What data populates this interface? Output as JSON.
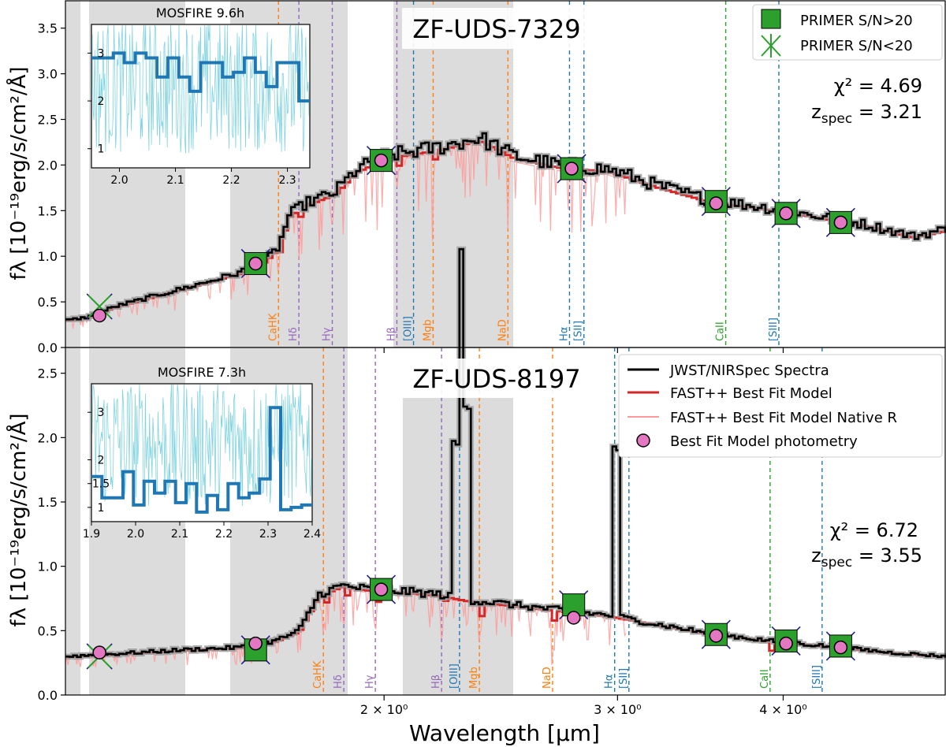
{
  "figure": {
    "xlabel": "Wavelength [µm]",
    "ylabel_top": "fλ [10⁻¹⁹erg/s/cm²/Å]",
    "ylabel_bottom": "fλ [10⁻¹⁹erg/s/cm²/Å]",
    "xticks": [
      "2 × 10⁰",
      "3 × 10⁰",
      "4 × 10⁰"
    ],
    "colors": {
      "spectrum": "#000000",
      "model": "#d62728",
      "model_native": "#ff9a9a",
      "photometry_fill": "#e377c2",
      "primer_fill": "#2ca02c",
      "shade": "#dcdcdc",
      "inset_raw": "#7fd3e0",
      "inset_binned": "#1f77b4",
      "balmer": "#9467bd",
      "abs": "#ff7f0e",
      "forbidden": "#1f77b4",
      "caii": "#2ca02c"
    }
  },
  "chart_data": [
    {
      "type": "line",
      "title": "ZF-UDS-7329",
      "xscale": "log",
      "xlim": [
        1.15,
        5.3
      ],
      "ylim": [
        0,
        3.8
      ],
      "yticks": [
        "0.0",
        "0.5",
        "1.0",
        "1.5",
        "2.0",
        "2.5",
        "3.0",
        "3.5"
      ],
      "chi2": "χ² = 4.69",
      "zspec": "z_spec = 3.21",
      "legend": [
        "PRIMER S/N>20",
        "PRIMER S/N<20"
      ],
      "lines": [
        {
          "label": "CaHK",
          "x": 1.665,
          "color": "abs"
        },
        {
          "label": "Hδ",
          "x": 1.725,
          "color": "balmer"
        },
        {
          "label": "Hγ",
          "x": 1.828,
          "color": "balmer"
        },
        {
          "label": "Hβ",
          "x": 2.045,
          "color": "balmer"
        },
        {
          "label": "[OIII]",
          "x": 2.105,
          "color": "forbidden"
        },
        {
          "label": "Mgb",
          "x": 2.178,
          "color": "abs"
        },
        {
          "label": "NaD",
          "x": 2.48,
          "color": "abs"
        },
        {
          "label": "Hα",
          "x": 2.76,
          "color": "forbidden"
        },
        {
          "label": "[SII]",
          "x": 2.83,
          "color": "forbidden"
        },
        {
          "label": "CaII",
          "x": 3.62,
          "color": "caii"
        },
        {
          "label": "[SIII]",
          "x": 3.97,
          "color": "forbidden"
        }
      ],
      "primer": [
        {
          "x": 1.22,
          "y": 0.45,
          "sn": "low"
        },
        {
          "x": 1.6,
          "y": 0.92,
          "sn": "high"
        },
        {
          "x": 1.99,
          "y": 2.05,
          "sn": "high"
        },
        {
          "x": 2.77,
          "y": 1.96,
          "sn": "high"
        },
        {
          "x": 3.56,
          "y": 1.6,
          "sn": "high"
        },
        {
          "x": 4.02,
          "y": 1.47,
          "sn": "high"
        },
        {
          "x": 4.42,
          "y": 1.37,
          "sn": "high"
        }
      ],
      "model_phot": [
        {
          "x": 1.22,
          "y": 0.35
        },
        {
          "x": 1.6,
          "y": 0.92
        },
        {
          "x": 1.99,
          "y": 2.05
        },
        {
          "x": 2.77,
          "y": 1.96
        },
        {
          "x": 3.56,
          "y": 1.58
        },
        {
          "x": 4.02,
          "y": 1.47
        },
        {
          "x": 4.42,
          "y": 1.37
        }
      ],
      "spectrum_nodes": [
        [
          1.15,
          0.3
        ],
        [
          1.19,
          0.33
        ],
        [
          1.25,
          0.45
        ],
        [
          1.35,
          0.58
        ],
        [
          1.45,
          0.7
        ],
        [
          1.55,
          0.82
        ],
        [
          1.62,
          0.95
        ],
        [
          1.66,
          1.1
        ],
        [
          1.69,
          1.45
        ],
        [
          1.74,
          1.58
        ],
        [
          1.83,
          1.7
        ],
        [
          1.9,
          1.95
        ],
        [
          2.0,
          2.1
        ],
        [
          2.1,
          2.15
        ],
        [
          2.2,
          2.2
        ],
        [
          2.35,
          2.3
        ],
        [
          2.5,
          2.1
        ],
        [
          2.7,
          2.0
        ],
        [
          2.95,
          1.95
        ],
        [
          3.2,
          1.78
        ],
        [
          3.5,
          1.62
        ],
        [
          3.8,
          1.55
        ],
        [
          4.2,
          1.45
        ],
        [
          4.6,
          1.35
        ],
        [
          5.0,
          1.22
        ],
        [
          5.3,
          1.3
        ]
      ],
      "inset": {
        "title": "MOSFIRE 9.6h",
        "xlim": [
          1.95,
          2.34
        ],
        "ylim": [
          0.6,
          3.6
        ],
        "xticks": [
          "2.0",
          "2.1",
          "2.2",
          "2.3"
        ],
        "yticks": [
          "1",
          "2",
          "3"
        ],
        "binned": [
          2.9,
          2.9,
          3.0,
          2.8,
          3.0,
          2.9,
          2.5,
          2.9,
          2.5,
          2.2,
          2.8,
          2.8,
          2.5,
          2.6,
          2.9,
          2.6,
          2.3,
          2.8,
          2.8,
          2.0
        ]
      }
    },
    {
      "type": "line",
      "title": "ZF-UDS-8197",
      "xscale": "log",
      "xlim": [
        1.15,
        5.3
      ],
      "ylim": [
        0,
        2.7
      ],
      "yticks": [
        "0.0",
        "0.5",
        "1.0",
        "1.5",
        "2.0",
        "2.5"
      ],
      "chi2": "χ² = 6.72",
      "zspec": "z_spec = 3.55",
      "legend": [
        "JWST/NIRSpec Spectra",
        "FAST++ Best Fit Model",
        "FAST++ Best Fit Model Native R",
        "Best Fit Model photometry"
      ],
      "lines": [
        {
          "label": "CaHK",
          "x": 1.8,
          "color": "abs"
        },
        {
          "label": "Hδ",
          "x": 1.865,
          "color": "balmer"
        },
        {
          "label": "Hγ",
          "x": 1.97,
          "color": "balmer"
        },
        {
          "label": "Hβ",
          "x": 2.21,
          "color": "balmer"
        },
        {
          "label": "[OIII]",
          "x": 2.28,
          "color": "forbidden"
        },
        {
          "label": "Mgb",
          "x": 2.36,
          "color": "abs"
        },
        {
          "label": "NaD",
          "x": 2.68,
          "color": "abs"
        },
        {
          "label": "Hα",
          "x": 2.985,
          "color": "forbidden"
        },
        {
          "label": "[SII]",
          "x": 3.06,
          "color": "forbidden"
        },
        {
          "label": "CaII",
          "x": 3.91,
          "color": "caii"
        },
        {
          "label": "[SIII]",
          "x": 4.28,
          "color": "forbidden"
        }
      ],
      "primer": [
        {
          "x": 1.22,
          "y": 0.3,
          "sn": "low"
        },
        {
          "x": 1.6,
          "y": 0.35,
          "sn": "high"
        },
        {
          "x": 1.99,
          "y": 0.82,
          "sn": "high"
        },
        {
          "x": 2.78,
          "y": 0.7,
          "sn": "high"
        },
        {
          "x": 3.56,
          "y": 0.47,
          "sn": "high"
        },
        {
          "x": 4.02,
          "y": 0.42,
          "sn": "high"
        },
        {
          "x": 4.42,
          "y": 0.38,
          "sn": "high"
        }
      ],
      "model_phot": [
        {
          "x": 1.22,
          "y": 0.33
        },
        {
          "x": 1.6,
          "y": 0.4
        },
        {
          "x": 1.99,
          "y": 0.82
        },
        {
          "x": 2.78,
          "y": 0.6
        },
        {
          "x": 3.56,
          "y": 0.46
        },
        {
          "x": 4.02,
          "y": 0.4
        },
        {
          "x": 4.42,
          "y": 0.37
        }
      ],
      "spectrum_nodes": [
        [
          1.15,
          0.3
        ],
        [
          1.25,
          0.32
        ],
        [
          1.4,
          0.35
        ],
        [
          1.55,
          0.37
        ],
        [
          1.65,
          0.42
        ],
        [
          1.72,
          0.5
        ],
        [
          1.78,
          0.78
        ],
        [
          1.85,
          0.85
        ],
        [
          1.95,
          0.82
        ],
        [
          2.1,
          0.8
        ],
        [
          2.2,
          0.78
        ],
        [
          2.3,
          0.74
        ],
        [
          2.5,
          0.7
        ],
        [
          2.7,
          0.66
        ],
        [
          2.95,
          0.62
        ],
        [
          3.2,
          0.55
        ],
        [
          3.5,
          0.48
        ],
        [
          3.9,
          0.42
        ],
        [
          4.3,
          0.38
        ],
        [
          4.8,
          0.33
        ],
        [
          5.3,
          0.3
        ]
      ],
      "inset": {
        "title": "MOSFIRE 7.3h",
        "xlim": [
          1.9,
          2.4
        ],
        "ylim": [
          0.7,
          3.6
        ],
        "xticks": [
          "1.9",
          "2.0",
          "2.1",
          "2.2",
          "2.3",
          "2.4"
        ],
        "yticks": [
          "1",
          "1.5",
          "2",
          "3"
        ],
        "binned": [
          1.65,
          1.2,
          1.2,
          1.75,
          1.05,
          1.55,
          1.3,
          1.55,
          1.1,
          1.5,
          0.9,
          1.25,
          0.95,
          1.5,
          1.2,
          1.3,
          1.6,
          3.1,
          0.95,
          1.0,
          1.05
        ]
      }
    }
  ]
}
